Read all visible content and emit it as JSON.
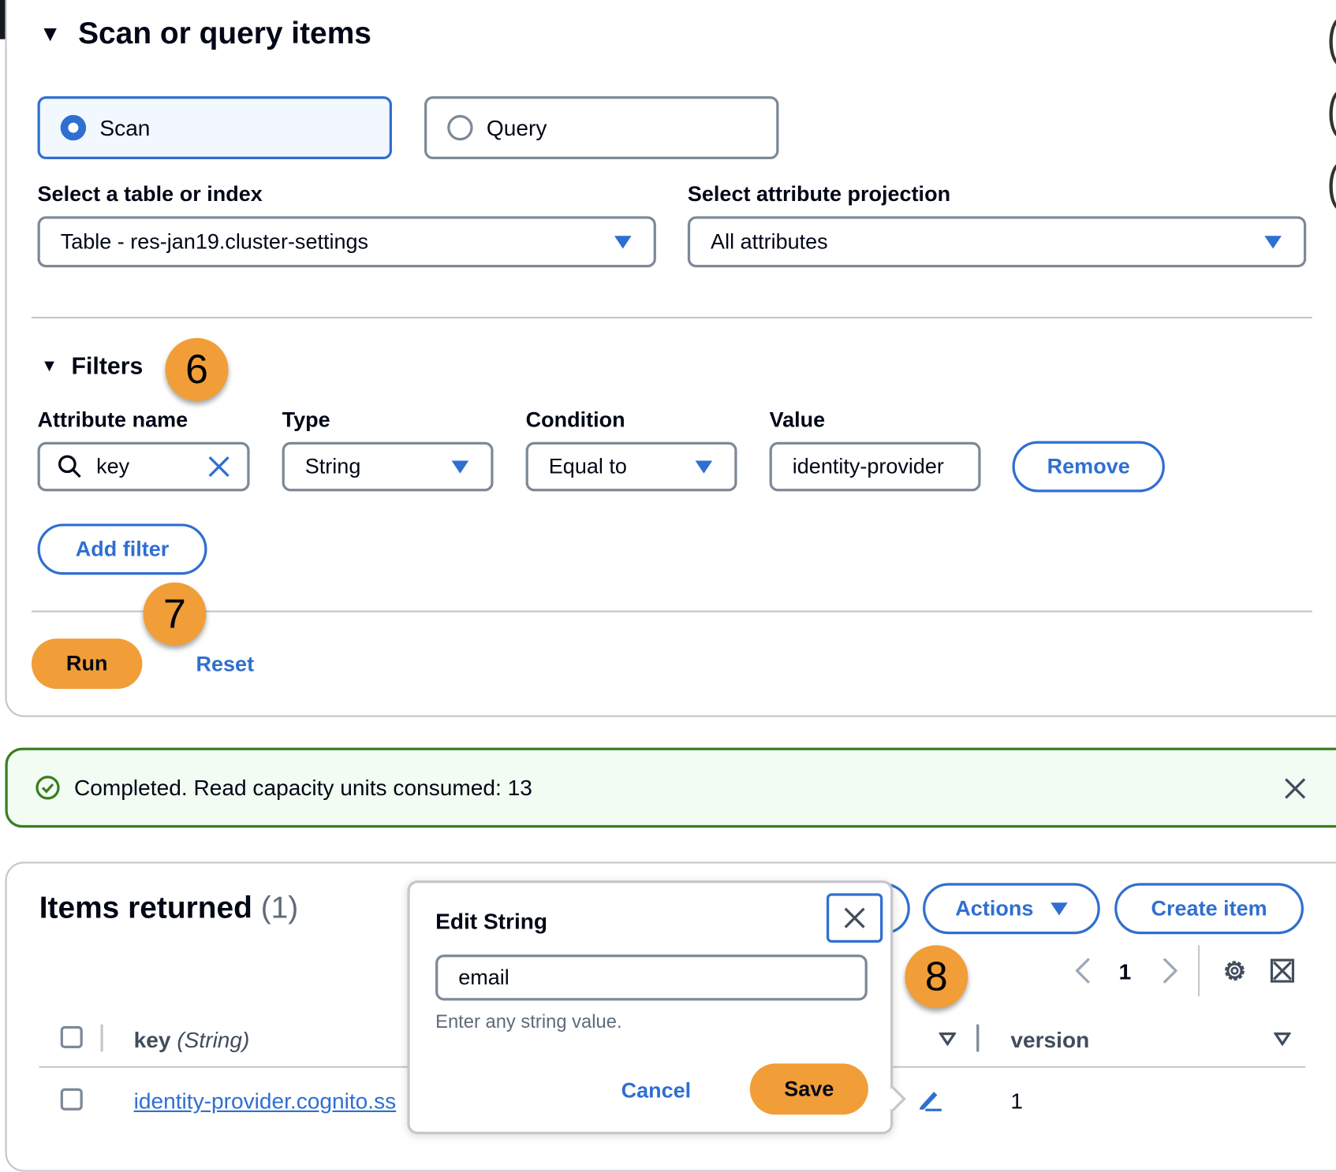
{
  "scan_panel": {
    "title": "Scan or query items",
    "modes": [
      {
        "label": "Scan",
        "selected": true
      },
      {
        "label": "Query",
        "selected": false
      }
    ],
    "table_label": "Select a table or index",
    "table_value": "Table - res-jan19.cluster-settings",
    "projection_label": "Select attribute projection",
    "projection_value": "All attributes",
    "filters": {
      "title": "Filters",
      "attr_label": "Attribute name",
      "attr_value": "key",
      "type_label": "Type",
      "type_value": "String",
      "cond_label": "Condition",
      "cond_value": "Equal to",
      "value_label": "Value",
      "value_value": "identity-provider",
      "remove": "Remove",
      "add": "Add filter"
    },
    "run": "Run",
    "reset": "Reset"
  },
  "badges": {
    "b6": "6",
    "b7": "7",
    "b8": "8"
  },
  "alert": {
    "text": "Completed. Read capacity units consumed: 13",
    "color": "#3a7e22"
  },
  "items": {
    "title": "Items returned",
    "count": "(1)",
    "actions": "Actions",
    "create": "Create item",
    "page": "1",
    "columns": [
      "key (String)",
      "version"
    ],
    "col_key_name": "key",
    "col_key_type": "(String)",
    "rows": [
      {
        "key": "identity-provider.cognito.ss",
        "version": "1"
      }
    ]
  },
  "popover": {
    "title": "Edit String",
    "value": "email",
    "hint": "Enter any string value.",
    "cancel": "Cancel",
    "save": "Save"
  },
  "colors": {
    "accent": "#2f6fd1",
    "primary_button": "#f19e38"
  }
}
